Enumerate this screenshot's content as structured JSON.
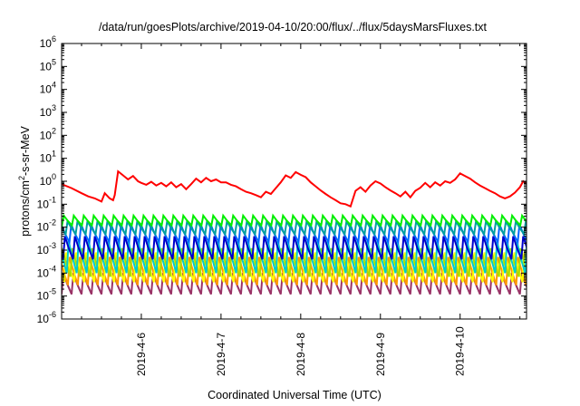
{
  "chart_data": {
    "type": "line",
    "title": "/data/run/goesPlots/archive/2019-04-10/20:00/flux/../flux/5daysMarsFluxes.txt",
    "xlabel": "Coordinated Universal Time (UTC)",
    "ylabel_prefix": "protons/cm",
    "ylabel_sup": "2",
    "ylabel_suffix": "-s-sr-MeV",
    "x_tick_labels": [
      "2019-4-6",
      "2019-4-7",
      "2019-4-8",
      "2019-4-9",
      "2019-4-10"
    ],
    "x_start": "2019-04-05 00:00",
    "x_end": "2019-04-10 20:00",
    "y_scale": "log",
    "ylim": [
      1e-06,
      1000000.0
    ],
    "y_tick_base": "10",
    "y_tick_exponents": [
      "-6",
      "-5",
      "-4",
      "-3",
      "-2",
      "-1",
      "0",
      "1",
      "2",
      "3",
      "4",
      "5",
      "6"
    ],
    "grid": false,
    "legend": "none",
    "series": [
      {
        "color": "#ff0000",
        "x": [
          "2019-04-05 00:00",
          "2019-04-05 03:00",
          "2019-04-05 06:00",
          "2019-04-05 08:00",
          "2019-04-05 10:00",
          "2019-04-05 12:00",
          "2019-04-05 13:00",
          "2019-04-05 14:30",
          "2019-04-05 15:30",
          "2019-04-05 16:00",
          "2019-04-05 17:00",
          "2019-04-05 18:30",
          "2019-04-05 20:00",
          "2019-04-05 21:30",
          "2019-04-05 23:00",
          "2019-04-06 00:00",
          "2019-04-06 01:30",
          "2019-04-06 03:00",
          "2019-04-06 04:30",
          "2019-04-06 06:00",
          "2019-04-06 07:30",
          "2019-04-06 09:00",
          "2019-04-06 10:30",
          "2019-04-06 12:00",
          "2019-04-06 13:30",
          "2019-04-06 15:00",
          "2019-04-06 16:30",
          "2019-04-06 18:00",
          "2019-04-06 19:30",
          "2019-04-06 21:00",
          "2019-04-06 22:30",
          "2019-04-07 00:00",
          "2019-04-07 01:30",
          "2019-04-07 03:00",
          "2019-04-07 04:30",
          "2019-04-07 06:00",
          "2019-04-07 07:30",
          "2019-04-07 09:00",
          "2019-04-07 10:30",
          "2019-04-07 12:00",
          "2019-04-07 13:30",
          "2019-04-07 15:00",
          "2019-04-07 16:30",
          "2019-04-07 18:00",
          "2019-04-07 19:30",
          "2019-04-07 21:00",
          "2019-04-07 22:30",
          "2019-04-08 00:00",
          "2019-04-08 01:30",
          "2019-04-08 03:00",
          "2019-04-08 04:30",
          "2019-04-08 06:00",
          "2019-04-08 07:30",
          "2019-04-08 09:00",
          "2019-04-08 10:30",
          "2019-04-08 12:00",
          "2019-04-08 13:30",
          "2019-04-08 15:00",
          "2019-04-08 16:30",
          "2019-04-08 18:00",
          "2019-04-08 19:30",
          "2019-04-08 21:00",
          "2019-04-08 22:30",
          "2019-04-09 00:00",
          "2019-04-09 01:30",
          "2019-04-09 03:00",
          "2019-04-09 04:30",
          "2019-04-09 06:00",
          "2019-04-09 07:30",
          "2019-04-09 09:00",
          "2019-04-09 10:30",
          "2019-04-09 12:00",
          "2019-04-09 13:30",
          "2019-04-09 15:00",
          "2019-04-09 16:30",
          "2019-04-09 18:00",
          "2019-04-09 19:30",
          "2019-04-09 21:00",
          "2019-04-09 22:30",
          "2019-04-10 00:00",
          "2019-04-10 01:30",
          "2019-04-10 03:00",
          "2019-04-10 04:30",
          "2019-04-10 06:00",
          "2019-04-10 07:30",
          "2019-04-10 09:00",
          "2019-04-10 10:30",
          "2019-04-10 12:00",
          "2019-04-10 13:30",
          "2019-04-10 15:00",
          "2019-04-10 16:30",
          "2019-04-10 18:00",
          "2019-04-10 19:00",
          "2019-04-10 20:00"
        ],
        "values": [
          0.75,
          0.5,
          0.3,
          0.22,
          0.18,
          0.13,
          0.3,
          0.18,
          0.15,
          0.25,
          2.7,
          1.8,
          1.2,
          1.7,
          1.0,
          0.85,
          0.7,
          0.95,
          0.65,
          0.85,
          0.6,
          0.9,
          0.55,
          0.75,
          0.45,
          0.75,
          1.3,
          0.9,
          1.4,
          1.0,
          1.2,
          0.9,
          0.9,
          0.7,
          0.6,
          0.45,
          0.35,
          0.3,
          0.25,
          0.2,
          0.35,
          0.28,
          0.5,
          0.9,
          1.8,
          1.4,
          2.5,
          1.9,
          1.5,
          0.9,
          0.6,
          0.4,
          0.28,
          0.2,
          0.15,
          0.11,
          0.1,
          0.08,
          0.38,
          0.55,
          0.35,
          0.65,
          1.0,
          0.8,
          0.55,
          0.4,
          0.3,
          0.22,
          0.35,
          0.2,
          0.38,
          0.52,
          0.85,
          0.55,
          0.9,
          0.65,
          1.0,
          0.85,
          1.2,
          2.2,
          1.7,
          1.3,
          0.9,
          0.65,
          0.5,
          0.38,
          0.3,
          0.22,
          0.18,
          0.22,
          0.32,
          0.55,
          1.0,
          0.8
        ]
      }
    ],
    "sawtooth_series": [
      {
        "color": "#00ee00",
        "peak": 0.032,
        "trough": 0.012
      },
      {
        "color": "#00a0a0",
        "peak": 0.018,
        "trough": 0.005
      },
      {
        "color": "#0066ff",
        "peak": 0.013,
        "trough": 0.0022
      },
      {
        "color": "#0000cc",
        "peak": 0.004,
        "trough": 0.0004
      },
      {
        "color": "#00cccc",
        "peak": 0.0025,
        "trough": 0.0001
      },
      {
        "color": "#aadd00",
        "peak": 0.0012,
        "trough": 7e-05
      },
      {
        "color": "#ffff00",
        "peak": 0.0008,
        "trough": 4e-05
      },
      {
        "color": "#ff9900",
        "peak": 0.0005,
        "trough": 3e-05
      },
      {
        "color": "#993366",
        "peak": 0.0001,
        "trough": 1.2e-05
      }
    ]
  }
}
